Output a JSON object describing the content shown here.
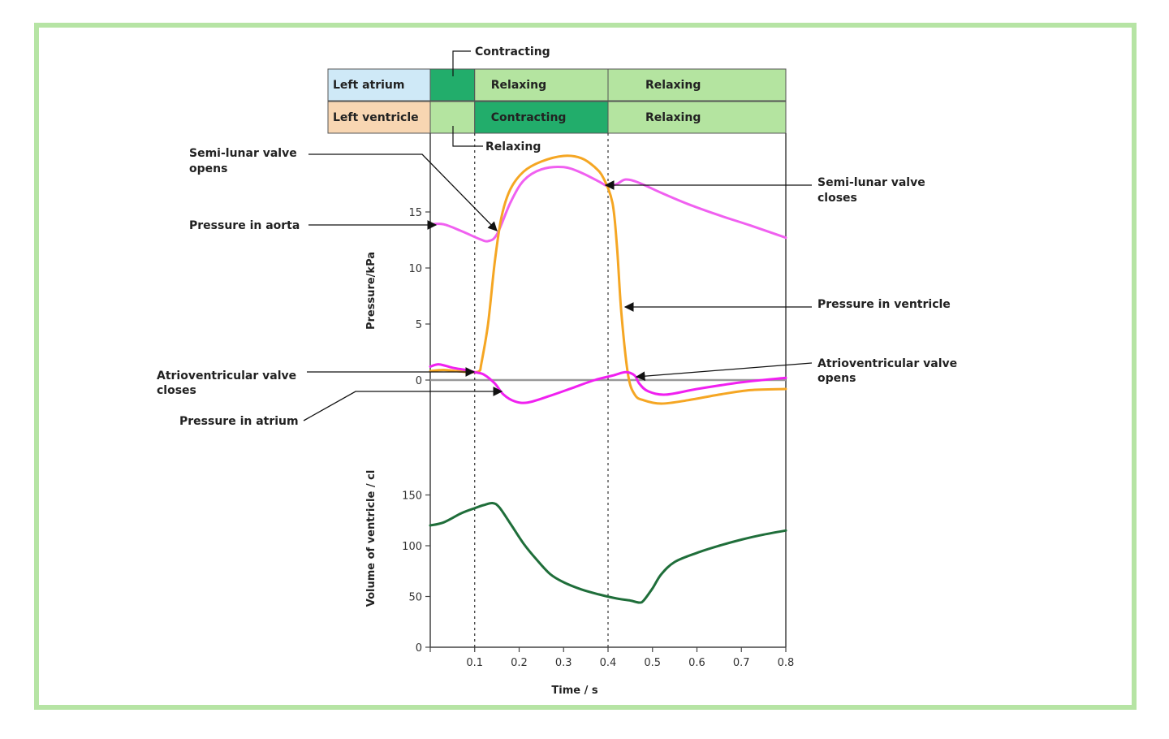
{
  "chart_data": {
    "type": "line",
    "xlabel": "Time / s",
    "x_ticks": [
      "0.1",
      "0.2",
      "0.3",
      "0.4",
      "0.5",
      "0.6",
      "0.7",
      "0.8"
    ],
    "xlim": [
      0,
      0.8
    ],
    "pressure": {
      "ylabel": "Pressure/kPa",
      "y_ticks": [
        "0",
        "5",
        "10",
        "15"
      ],
      "ylim": [
        -3,
        20
      ],
      "series": [
        {
          "key": "aorta",
          "color": "#f060f0",
          "points": [
            [
              0,
              13.9
            ],
            [
              0.03,
              13.9
            ],
            [
              0.07,
              13.3
            ],
            [
              0.11,
              12.6
            ],
            [
              0.13,
              12.4
            ],
            [
              0.15,
              13.0
            ],
            [
              0.18,
              15.8
            ],
            [
              0.21,
              17.8
            ],
            [
              0.25,
              18.8
            ],
            [
              0.3,
              19.0
            ],
            [
              0.34,
              18.5
            ],
            [
              0.38,
              17.7
            ],
            [
              0.4,
              17.3
            ],
            [
              0.42,
              17.5
            ],
            [
              0.44,
              17.9
            ],
            [
              0.47,
              17.6
            ],
            [
              0.52,
              16.7
            ],
            [
              0.58,
              15.7
            ],
            [
              0.65,
              14.7
            ],
            [
              0.72,
              13.8
            ],
            [
              0.8,
              12.7
            ]
          ]
        },
        {
          "key": "ventricle",
          "color": "#f5a623",
          "points": [
            [
              0,
              0.8
            ],
            [
              0.03,
              0.9
            ],
            [
              0.06,
              0.8
            ],
            [
              0.09,
              0.7
            ],
            [
              0.11,
              0.8
            ],
            [
              0.115,
              1.5
            ],
            [
              0.13,
              5.0
            ],
            [
              0.145,
              10.5
            ],
            [
              0.16,
              14.5
            ],
            [
              0.18,
              17.0
            ],
            [
              0.21,
              18.6
            ],
            [
              0.25,
              19.5
            ],
            [
              0.3,
              20.0
            ],
            [
              0.34,
              19.8
            ],
            [
              0.37,
              19.0
            ],
            [
              0.39,
              18.0
            ],
            [
              0.41,
              15.8
            ],
            [
              0.42,
              12.0
            ],
            [
              0.43,
              6.0
            ],
            [
              0.445,
              0.5
            ],
            [
              0.46,
              -1.3
            ],
            [
              0.48,
              -1.8
            ],
            [
              0.52,
              -2.1
            ],
            [
              0.58,
              -1.8
            ],
            [
              0.65,
              -1.3
            ],
            [
              0.72,
              -0.9
            ],
            [
              0.8,
              -0.8
            ]
          ]
        },
        {
          "key": "atrium",
          "color": "#f020f0",
          "points": [
            [
              0,
              1.2
            ],
            [
              0.02,
              1.4
            ],
            [
              0.05,
              1.1
            ],
            [
              0.08,
              0.9
            ],
            [
              0.1,
              0.7
            ],
            [
              0.12,
              0.5
            ],
            [
              0.145,
              -0.3
            ],
            [
              0.165,
              -1.3
            ],
            [
              0.19,
              -1.9
            ],
            [
              0.22,
              -2.0
            ],
            [
              0.27,
              -1.4
            ],
            [
              0.32,
              -0.7
            ],
            [
              0.37,
              0.0
            ],
            [
              0.41,
              0.4
            ],
            [
              0.44,
              0.7
            ],
            [
              0.46,
              0.4
            ],
            [
              0.47,
              -0.3
            ],
            [
              0.49,
              -1.0
            ],
            [
              0.53,
              -1.3
            ],
            [
              0.6,
              -0.8
            ],
            [
              0.7,
              -0.2
            ],
            [
              0.8,
              0.2
            ]
          ]
        }
      ]
    },
    "volume": {
      "ylabel": "Volume of ventricle / cl",
      "y_ticks": [
        "0",
        "50",
        "100",
        "150"
      ],
      "ylim": [
        0,
        150
      ],
      "series": [
        {
          "key": "volume",
          "color": "#1f6e3a",
          "points": [
            [
              0,
              120
            ],
            [
              0.03,
              123
            ],
            [
              0.07,
              132
            ],
            [
              0.1,
              137
            ],
            [
              0.12,
              140
            ],
            [
              0.14,
              142
            ],
            [
              0.155,
              138
            ],
            [
              0.18,
              122
            ],
            [
              0.21,
              102
            ],
            [
              0.24,
              86
            ],
            [
              0.27,
              72
            ],
            [
              0.3,
              64
            ],
            [
              0.34,
              57
            ],
            [
              0.38,
              52
            ],
            [
              0.42,
              48
            ],
            [
              0.45,
              46
            ],
            [
              0.47,
              44
            ],
            [
              0.48,
              46
            ],
            [
              0.5,
              58
            ],
            [
              0.52,
              72
            ],
            [
              0.55,
              84
            ],
            [
              0.6,
              93
            ],
            [
              0.65,
              100
            ],
            [
              0.7,
              106
            ],
            [
              0.75,
              111
            ],
            [
              0.8,
              115
            ]
          ]
        }
      ]
    },
    "phase_table": {
      "rows": [
        {
          "label": "Left atrium",
          "label_color": "#cfe9f7",
          "cells": [
            {
              "text": "",
              "color": "#22ad6b",
              "x0": 0,
              "x1": 0.1
            },
            {
              "text": "Relaxing",
              "color": "#b4e4a0",
              "x0": 0.1,
              "x1": 0.4
            },
            {
              "text": "Relaxing",
              "color": "#b4e4a0",
              "x0": 0.4,
              "x1": 0.8
            }
          ]
        },
        {
          "label": "Left ventricle",
          "label_color": "#f8d6b2",
          "cells": [
            {
              "text": "",
              "color": "#b4e4a0",
              "x0": 0,
              "x1": 0.1
            },
            {
              "text": "Contracting",
              "color": "#22ad6b",
              "x0": 0.1,
              "x1": 0.4
            },
            {
              "text": "Relaxing",
              "color": "#b4e4a0",
              "x0": 0.4,
              "x1": 0.8
            }
          ]
        }
      ],
      "callout_top": "Contracting",
      "callout_bottom": "Relaxing"
    },
    "annotations": {
      "semilunar_opens": "Semi-lunar valve opens",
      "semilunar_closes": "Semi-lunar valve closes",
      "pressure_aorta": "Pressure in aorta",
      "pressure_ventricle": "Pressure in ventricle",
      "av_closes": "Atrioventricular valve closes",
      "av_opens": "Atrioventricular valve opens",
      "pressure_atrium": "Pressure in atrium"
    },
    "dashed_lines_x": [
      0.1,
      0.4
    ]
  }
}
